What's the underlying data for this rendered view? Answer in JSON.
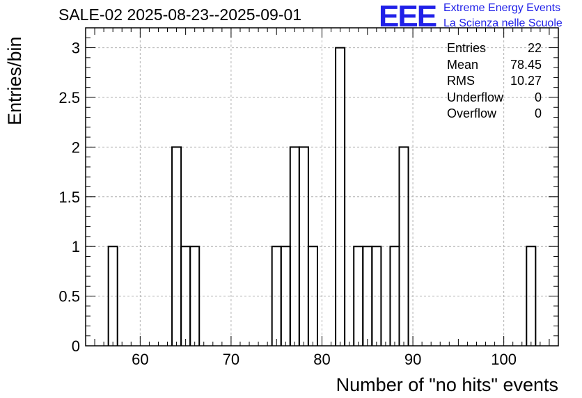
{
  "chart_data": {
    "type": "bar",
    "title": "SALE-02 2025-08-23--2025-09-01",
    "xlabel": "Number of \"no hits\" events",
    "ylabel": "Entries/bin",
    "xlim": [
      54,
      106
    ],
    "ylim": [
      0,
      3.2
    ],
    "grid": true,
    "x_ticks": [
      60,
      70,
      80,
      90,
      100
    ],
    "y_ticks": [
      0,
      0.5,
      1,
      1.5,
      2,
      2.5,
      3
    ],
    "bin_width": 1,
    "bins": [
      {
        "x": 57,
        "count": 1
      },
      {
        "x": 64,
        "count": 2
      },
      {
        "x": 65,
        "count": 1
      },
      {
        "x": 66,
        "count": 1
      },
      {
        "x": 75,
        "count": 1
      },
      {
        "x": 76,
        "count": 1
      },
      {
        "x": 77,
        "count": 2
      },
      {
        "x": 78,
        "count": 2
      },
      {
        "x": 79,
        "count": 1
      },
      {
        "x": 82,
        "count": 3
      },
      {
        "x": 84,
        "count": 1
      },
      {
        "x": 85,
        "count": 1
      },
      {
        "x": 86,
        "count": 1
      },
      {
        "x": 88,
        "count": 1
      },
      {
        "x": 89,
        "count": 2
      },
      {
        "x": 103,
        "count": 1
      }
    ]
  },
  "stats": {
    "entries_label": "Entries",
    "entries": "22",
    "mean_label": "Mean",
    "mean": "78.45",
    "rms_label": "RMS",
    "rms": "10.27",
    "underflow_label": "Underflow",
    "underflow": "0",
    "overflow_label": "Overflow",
    "overflow": "0"
  },
  "logo": {
    "mark": "EEE",
    "line1": "Extreme Energy Events",
    "line2": "La Scienza nelle Scuole",
    "color": "#2020e8"
  }
}
